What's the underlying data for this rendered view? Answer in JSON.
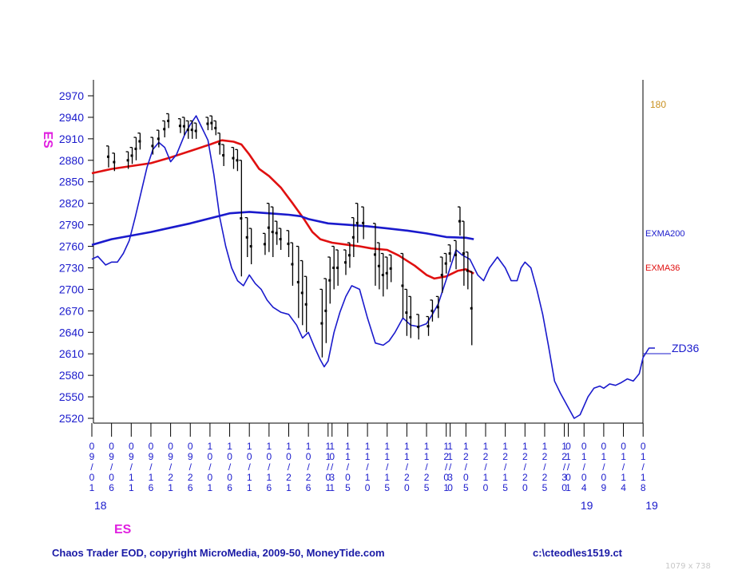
{
  "chart_data": {
    "type": "line",
    "symbol": "ES",
    "symbol_left": "ES",
    "symbol_bottom": "ES",
    "cycle_label": "180",
    "labels": {
      "exma200": "EXMA200",
      "exma36": "EXMA36",
      "zd36": "ZD36"
    },
    "y_ticks": [
      2970,
      2940,
      2910,
      2880,
      2850,
      2820,
      2790,
      2760,
      2730,
      2700,
      2670,
      2640,
      2610,
      2580,
      2550,
      2520
    ],
    "ylim": [
      2518,
      2984
    ],
    "x_ticks": [
      {
        "i": 0,
        "label": "09/01"
      },
      {
        "i": 1,
        "label": "09/06"
      },
      {
        "i": 2,
        "label": "09/11"
      },
      {
        "i": 3,
        "label": "09/16"
      },
      {
        "i": 4,
        "label": "09/21"
      },
      {
        "i": 5,
        "label": "09/26"
      },
      {
        "i": 6,
        "label": "10/01"
      },
      {
        "i": 7,
        "label": "10/06"
      },
      {
        "i": 8,
        "label": "10/11"
      },
      {
        "i": 9,
        "label": "10/16"
      },
      {
        "i": 10,
        "label": "10/21"
      },
      {
        "i": 11,
        "label": "10/26"
      },
      {
        "i": 12,
        "label": "11/01"
      },
      {
        "i": 12.2,
        "label": "10/31"
      },
      {
        "i": 13,
        "label": "11/05"
      },
      {
        "i": 14,
        "label": "11/10"
      },
      {
        "i": 15,
        "label": "11/15"
      },
      {
        "i": 16,
        "label": "11/20"
      },
      {
        "i": 17,
        "label": "11/25"
      },
      {
        "i": 18,
        "label": "12/01"
      },
      {
        "i": 18.2,
        "label": "11/30"
      },
      {
        "i": 19,
        "label": "12/05"
      },
      {
        "i": 20,
        "label": "12/10"
      },
      {
        "i": 21,
        "label": "12/15"
      },
      {
        "i": 22,
        "label": "12/20"
      },
      {
        "i": 23,
        "label": "12/25"
      },
      {
        "i": 24,
        "label": "12/30"
      },
      {
        "i": 24.2,
        "label": "01/01"
      },
      {
        "i": 25,
        "label": "01/04"
      },
      {
        "i": 26,
        "label": "01/09"
      },
      {
        "i": 27,
        "label": "01/14"
      },
      {
        "i": 28,
        "label": "01/18"
      }
    ],
    "year_labels": [
      {
        "i": 0,
        "label": "18"
      },
      {
        "i": 24.7,
        "label": "19"
      },
      {
        "i": 28,
        "label": "19"
      }
    ],
    "price_bars": [
      {
        "i": 0.85,
        "high": 2900,
        "low": 2870
      },
      {
        "i": 1.15,
        "high": 2890,
        "low": 2865
      },
      {
        "i": 1.85,
        "high": 2892,
        "low": 2868
      },
      {
        "i": 2.05,
        "high": 2898,
        "low": 2875
      },
      {
        "i": 2.25,
        "high": 2912,
        "low": 2880
      },
      {
        "i": 2.45,
        "high": 2918,
        "low": 2895
      },
      {
        "i": 3.1,
        "high": 2912,
        "low": 2888
      },
      {
        "i": 3.4,
        "high": 2922,
        "low": 2898
      },
      {
        "i": 3.7,
        "high": 2935,
        "low": 2912
      },
      {
        "i": 3.9,
        "high": 2945,
        "low": 2925
      },
      {
        "i": 4.5,
        "high": 2938,
        "low": 2918
      },
      {
        "i": 4.7,
        "high": 2940,
        "low": 2915
      },
      {
        "i": 4.9,
        "high": 2935,
        "low": 2910
      },
      {
        "i": 5.1,
        "high": 2935,
        "low": 2910
      },
      {
        "i": 5.3,
        "high": 2932,
        "low": 2910
      },
      {
        "i": 5.9,
        "high": 2940,
        "low": 2922
      },
      {
        "i": 6.1,
        "high": 2942,
        "low": 2922
      },
      {
        "i": 6.3,
        "high": 2935,
        "low": 2915
      },
      {
        "i": 6.5,
        "high": 2918,
        "low": 2888
      },
      {
        "i": 6.7,
        "high": 2902,
        "low": 2872
      },
      {
        "i": 7.2,
        "high": 2898,
        "low": 2868
      },
      {
        "i": 7.4,
        "high": 2895,
        "low": 2865
      },
      {
        "i": 7.6,
        "high": 2880,
        "low": 2718
      },
      {
        "i": 7.9,
        "high": 2800,
        "low": 2745
      },
      {
        "i": 8.1,
        "high": 2785,
        "low": 2735
      },
      {
        "i": 8.8,
        "high": 2778,
        "low": 2748
      },
      {
        "i": 9.0,
        "high": 2820,
        "low": 2752
      },
      {
        "i": 9.2,
        "high": 2815,
        "low": 2745
      },
      {
        "i": 9.4,
        "high": 2795,
        "low": 2762
      },
      {
        "i": 9.6,
        "high": 2785,
        "low": 2755
      },
      {
        "i": 10.0,
        "high": 2782,
        "low": 2745
      },
      {
        "i": 10.2,
        "high": 2765,
        "low": 2705
      },
      {
        "i": 10.5,
        "high": 2760,
        "low": 2660
      },
      {
        "i": 10.7,
        "high": 2740,
        "low": 2650
      },
      {
        "i": 10.9,
        "high": 2718,
        "low": 2640
      },
      {
        "i": 11.7,
        "high": 2700,
        "low": 2605
      },
      {
        "i": 11.9,
        "high": 2715,
        "low": 2625
      },
      {
        "i": 12.1,
        "high": 2745,
        "low": 2680
      },
      {
        "i": 12.3,
        "high": 2760,
        "low": 2700
      },
      {
        "i": 12.5,
        "high": 2755,
        "low": 2705
      },
      {
        "i": 12.9,
        "high": 2755,
        "low": 2720
      },
      {
        "i": 13.1,
        "high": 2765,
        "low": 2730
      },
      {
        "i": 13.3,
        "high": 2800,
        "low": 2745
      },
      {
        "i": 13.5,
        "high": 2820,
        "low": 2765
      },
      {
        "i": 13.8,
        "high": 2815,
        "low": 2770
      },
      {
        "i": 14.4,
        "high": 2792,
        "low": 2705
      },
      {
        "i": 14.6,
        "high": 2765,
        "low": 2700
      },
      {
        "i": 14.8,
        "high": 2750,
        "low": 2690
      },
      {
        "i": 15.0,
        "high": 2745,
        "low": 2700
      },
      {
        "i": 15.2,
        "high": 2748,
        "low": 2710
      },
      {
        "i": 15.8,
        "high": 2750,
        "low": 2660
      },
      {
        "i": 16.0,
        "high": 2700,
        "low": 2635
      },
      {
        "i": 16.2,
        "high": 2690,
        "low": 2632
      },
      {
        "i": 16.6,
        "high": 2665,
        "low": 2630
      },
      {
        "i": 17.1,
        "high": 2662,
        "low": 2635
      },
      {
        "i": 17.3,
        "high": 2685,
        "low": 2655
      },
      {
        "i": 17.6,
        "high": 2690,
        "low": 2660
      },
      {
        "i": 17.8,
        "high": 2745,
        "low": 2695
      },
      {
        "i": 18.0,
        "high": 2750,
        "low": 2722
      },
      {
        "i": 18.2,
        "high": 2762,
        "low": 2738
      },
      {
        "i": 18.5,
        "high": 2768,
        "low": 2728
      },
      {
        "i": 18.7,
        "high": 2815,
        "low": 2775
      },
      {
        "i": 18.9,
        "high": 2795,
        "low": 2705
      },
      {
        "i": 19.1,
        "high": 2752,
        "low": 2700
      },
      {
        "i": 19.3,
        "high": 2725,
        "low": 2622
      }
    ],
    "series": [
      {
        "name": "EXMA36",
        "color": "#e01010",
        "points": [
          [
            0,
            2862
          ],
          [
            1,
            2868
          ],
          [
            2,
            2872
          ],
          [
            3,
            2876
          ],
          [
            4,
            2884
          ],
          [
            5,
            2893
          ],
          [
            6,
            2902
          ],
          [
            6.6,
            2908
          ],
          [
            7.2,
            2906
          ],
          [
            7.6,
            2902
          ],
          [
            8,
            2888
          ],
          [
            8.5,
            2868
          ],
          [
            9,
            2858
          ],
          [
            9.6,
            2842
          ],
          [
            10.2,
            2820
          ],
          [
            10.8,
            2797
          ],
          [
            11.2,
            2780
          ],
          [
            11.6,
            2770
          ],
          [
            12.2,
            2765
          ],
          [
            13.0,
            2762
          ],
          [
            13.6,
            2760
          ],
          [
            14.2,
            2757
          ],
          [
            15.0,
            2755
          ],
          [
            15.6,
            2747
          ],
          [
            16.4,
            2733
          ],
          [
            17.0,
            2720
          ],
          [
            17.4,
            2715
          ],
          [
            18.0,
            2718
          ],
          [
            18.6,
            2726
          ],
          [
            19.0,
            2728
          ],
          [
            19.4,
            2722
          ]
        ]
      },
      {
        "name": "EXMA200",
        "color": "#1a1acc",
        "points": [
          [
            0,
            2762
          ],
          [
            1,
            2770
          ],
          [
            2,
            2775
          ],
          [
            3,
            2780
          ],
          [
            4,
            2786
          ],
          [
            5,
            2792
          ],
          [
            6,
            2799
          ],
          [
            7,
            2806
          ],
          [
            8,
            2808
          ],
          [
            9,
            2806
          ],
          [
            10,
            2804
          ],
          [
            10.6,
            2802
          ],
          [
            11,
            2798
          ],
          [
            12,
            2792
          ],
          [
            13,
            2790
          ],
          [
            14,
            2788
          ],
          [
            15,
            2785
          ],
          [
            16,
            2782
          ],
          [
            17,
            2778
          ],
          [
            18,
            2773
          ],
          [
            19,
            2772
          ],
          [
            19.4,
            2770
          ]
        ]
      },
      {
        "name": "ZD36",
        "color": "#1a1acc",
        "points": [
          [
            0,
            2742
          ],
          [
            0.3,
            2746
          ],
          [
            0.7,
            2734
          ],
          [
            1,
            2738
          ],
          [
            1.3,
            2738
          ],
          [
            1.6,
            2750
          ],
          [
            1.9,
            2768
          ],
          [
            2.2,
            2800
          ],
          [
            2.5,
            2835
          ],
          [
            2.8,
            2870
          ],
          [
            3.1,
            2895
          ],
          [
            3.4,
            2905
          ],
          [
            3.7,
            2898
          ],
          [
            4.0,
            2878
          ],
          [
            4.3,
            2888
          ],
          [
            4.7,
            2915
          ],
          [
            5.0,
            2930
          ],
          [
            5.3,
            2942
          ],
          [
            5.6,
            2925
          ],
          [
            5.9,
            2908
          ],
          [
            6.2,
            2860
          ],
          [
            6.5,
            2800
          ],
          [
            6.8,
            2760
          ],
          [
            7.1,
            2730
          ],
          [
            7.4,
            2712
          ],
          [
            7.7,
            2705
          ],
          [
            8.0,
            2720
          ],
          [
            8.3,
            2708
          ],
          [
            8.6,
            2700
          ],
          [
            8.9,
            2685
          ],
          [
            9.2,
            2675
          ],
          [
            9.6,
            2668
          ],
          [
            10.0,
            2665
          ],
          [
            10.4,
            2650
          ],
          [
            10.7,
            2632
          ],
          [
            11.0,
            2640
          ],
          [
            11.3,
            2620
          ],
          [
            11.6,
            2602
          ],
          [
            11.8,
            2592
          ],
          [
            12.0,
            2600
          ],
          [
            12.3,
            2640
          ],
          [
            12.6,
            2668
          ],
          [
            12.9,
            2690
          ],
          [
            13.2,
            2705
          ],
          [
            13.6,
            2700
          ],
          [
            14.0,
            2660
          ],
          [
            14.4,
            2625
          ],
          [
            14.8,
            2622
          ],
          [
            15.1,
            2628
          ],
          [
            15.4,
            2640
          ],
          [
            15.8,
            2660
          ],
          [
            16.2,
            2650
          ],
          [
            16.6,
            2648
          ],
          [
            17.0,
            2652
          ],
          [
            17.3,
            2665
          ],
          [
            17.6,
            2680
          ],
          [
            17.9,
            2705
          ],
          [
            18.2,
            2730
          ],
          [
            18.5,
            2755
          ],
          [
            18.8,
            2748
          ],
          [
            19.2,
            2742
          ],
          [
            19.6,
            2720
          ],
          [
            19.9,
            2712
          ],
          [
            20.2,
            2730
          ],
          [
            20.6,
            2745
          ],
          [
            21.0,
            2730
          ],
          [
            21.3,
            2712
          ],
          [
            21.6,
            2712
          ],
          [
            21.8,
            2730
          ],
          [
            22.0,
            2738
          ],
          [
            22.3,
            2730
          ],
          [
            22.6,
            2700
          ],
          [
            22.9,
            2665
          ],
          [
            23.2,
            2620
          ],
          [
            23.5,
            2572
          ],
          [
            23.8,
            2555
          ],
          [
            24.2,
            2535
          ],
          [
            24.5,
            2520
          ],
          [
            24.8,
            2525
          ],
          [
            25.2,
            2550
          ],
          [
            25.5,
            2562
          ],
          [
            25.8,
            2565
          ],
          [
            26.0,
            2562
          ],
          [
            26.3,
            2568
          ],
          [
            26.6,
            2566
          ],
          [
            26.9,
            2570
          ],
          [
            27.2,
            2575
          ],
          [
            27.5,
            2572
          ],
          [
            27.8,
            2582
          ],
          [
            28.0,
            2605
          ],
          [
            28.3,
            2618
          ],
          [
            28.6,
            2618
          ]
        ]
      }
    ]
  },
  "footer": {
    "left": "Chaos Trader EOD, copyright MicroMedia, 2009-50, MoneyTide.com",
    "right": "c:\\cteod\\es1519.ct"
  },
  "resolution": "1079 x 738"
}
